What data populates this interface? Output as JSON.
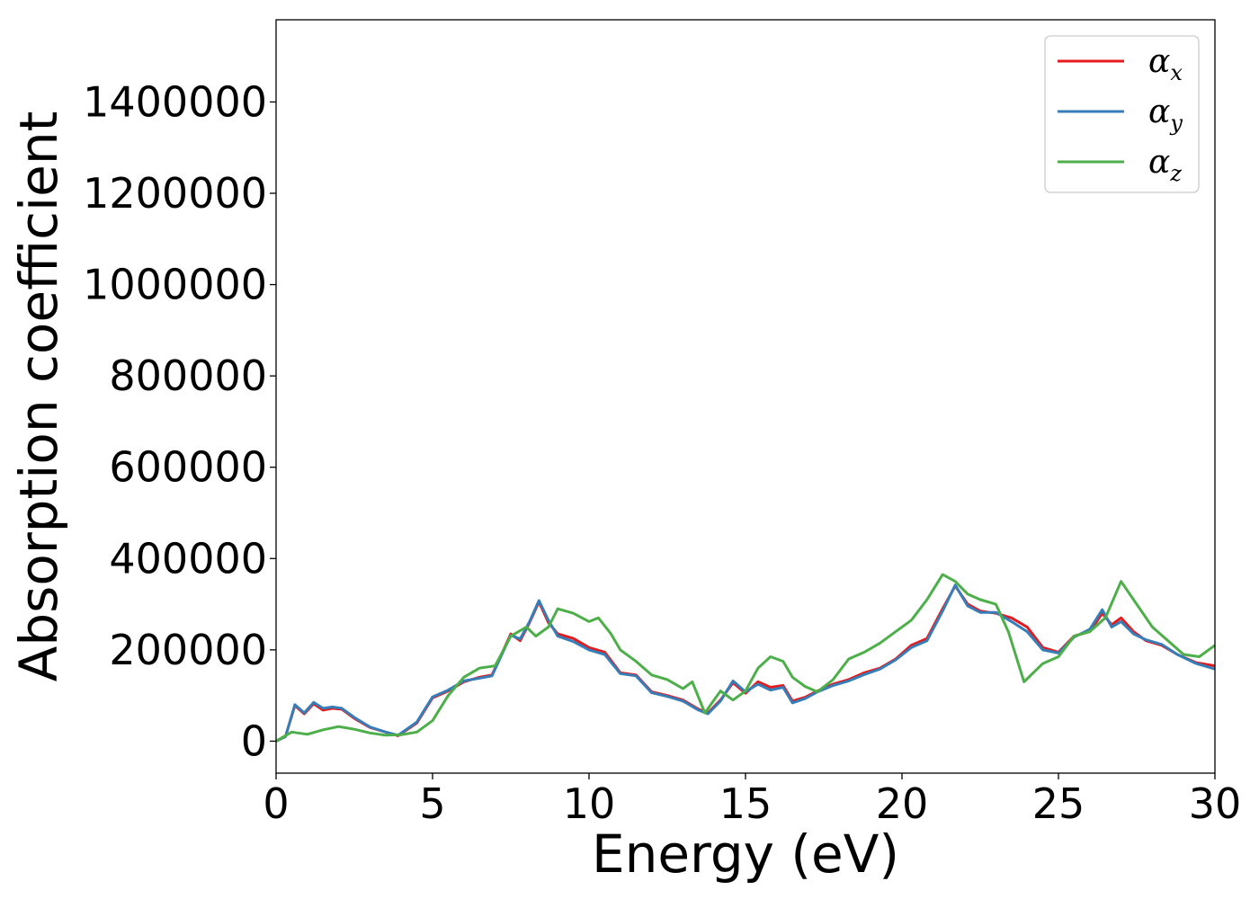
{
  "chart_data": {
    "type": "line",
    "xlabel": "Energy (eV)",
    "ylabel": "Absorption coefficient",
    "xlim": [
      0,
      30
    ],
    "ylim": [
      -70000,
      1580000
    ],
    "xticks": [
      0,
      5,
      10,
      15,
      20,
      25,
      30
    ],
    "xtick_labels": [
      "0",
      "5",
      "10",
      "15",
      "20",
      "25",
      "30"
    ],
    "yticks": [
      0,
      200000,
      400000,
      600000,
      800000,
      1000000,
      1200000,
      1400000
    ],
    "ytick_labels": [
      "0",
      "200000",
      "400000",
      "600000",
      "800000",
      "1000000",
      "1200000",
      "1400000"
    ],
    "grid": false,
    "legend": "top-right",
    "series": [
      {
        "name": "α",
        "subscript": "x",
        "color": "#e41a1c",
        "x": [
          0,
          0.3,
          0.6,
          0.9,
          1.2,
          1.5,
          1.8,
          2.1,
          2.5,
          3.0,
          3.5,
          3.9,
          4.5,
          5.0,
          5.5,
          6.0,
          6.5,
          6.9,
          7.2,
          7.5,
          7.8,
          8.1,
          8.4,
          8.7,
          9.0,
          9.5,
          10.0,
          10.5,
          11.0,
          11.5,
          12.0,
          12.5,
          13.0,
          13.5,
          13.8,
          14.2,
          14.6,
          15.0,
          15.4,
          15.8,
          16.2,
          16.5,
          16.9,
          17.3,
          17.8,
          18.3,
          18.8,
          19.3,
          19.8,
          20.3,
          20.8,
          21.3,
          21.7,
          22.1,
          22.5,
          23.0,
          23.5,
          24.0,
          24.5,
          25.0,
          25.5,
          26.0,
          26.4,
          26.7,
          27.0,
          27.4,
          27.8,
          28.3,
          28.8,
          29.4,
          30.0
        ],
        "values": [
          0,
          10000,
          78000,
          60000,
          82000,
          68000,
          72000,
          70000,
          50000,
          30000,
          20000,
          12000,
          40000,
          95000,
          110000,
          130000,
          140000,
          145000,
          190000,
          235000,
          220000,
          260000,
          305000,
          260000,
          235000,
          225000,
          205000,
          195000,
          150000,
          145000,
          108000,
          100000,
          90000,
          70000,
          62000,
          90000,
          128000,
          105000,
          130000,
          118000,
          122000,
          88000,
          96000,
          110000,
          125000,
          135000,
          150000,
          160000,
          180000,
          210000,
          225000,
          290000,
          340000,
          300000,
          285000,
          280000,
          270000,
          250000,
          205000,
          195000,
          230000,
          240000,
          280000,
          255000,
          270000,
          240000,
          220000,
          210000,
          190000,
          172000,
          165000
        ]
      },
      {
        "name": "α",
        "subscript": "y",
        "color": "#377eb8",
        "x": [
          0,
          0.3,
          0.6,
          0.9,
          1.2,
          1.5,
          1.8,
          2.1,
          2.5,
          3.0,
          3.5,
          3.9,
          4.5,
          5.0,
          5.5,
          6.0,
          6.5,
          6.9,
          7.2,
          7.5,
          7.8,
          8.1,
          8.4,
          8.7,
          9.0,
          9.5,
          10.0,
          10.5,
          11.0,
          11.5,
          12.0,
          12.5,
          13.0,
          13.5,
          13.8,
          14.2,
          14.6,
          15.0,
          15.4,
          15.8,
          16.2,
          16.5,
          16.9,
          17.3,
          17.8,
          18.3,
          18.8,
          19.3,
          19.8,
          20.3,
          20.8,
          21.3,
          21.7,
          22.1,
          22.5,
          23.0,
          23.5,
          24.0,
          24.5,
          25.0,
          25.5,
          26.0,
          26.4,
          26.7,
          27.0,
          27.4,
          27.8,
          28.3,
          28.8,
          29.4,
          30.0
        ],
        "values": [
          0,
          10000,
          80000,
          62000,
          85000,
          72000,
          75000,
          72000,
          52000,
          31000,
          20000,
          13000,
          42000,
          97000,
          112000,
          132000,
          138000,
          143000,
          188000,
          232000,
          224000,
          262000,
          308000,
          265000,
          230000,
          218000,
          200000,
          190000,
          148000,
          143000,
          106000,
          98000,
          88000,
          68000,
          60000,
          88000,
          132000,
          108000,
          125000,
          112000,
          118000,
          84000,
          93000,
          108000,
          122000,
          132000,
          146000,
          158000,
          178000,
          205000,
          220000,
          285000,
          342000,
          296000,
          282000,
          282000,
          262000,
          240000,
          200000,
          193000,
          228000,
          245000,
          288000,
          250000,
          262000,
          235000,
          222000,
          212000,
          190000,
          170000,
          158000
        ]
      },
      {
        "name": "α",
        "subscript": "z",
        "color": "#4daf4a",
        "x": [
          0,
          0.5,
          1.0,
          1.5,
          2.0,
          2.5,
          3.0,
          3.5,
          4.0,
          4.5,
          5.0,
          5.5,
          6.0,
          6.5,
          7.0,
          7.5,
          8.0,
          8.3,
          8.7,
          9.0,
          9.5,
          10.0,
          10.3,
          10.7,
          11.0,
          11.5,
          12.0,
          12.5,
          13.0,
          13.3,
          13.7,
          14.2,
          14.6,
          15.0,
          15.4,
          15.8,
          16.2,
          16.5,
          16.9,
          17.3,
          17.8,
          18.3,
          18.8,
          19.3,
          19.8,
          20.3,
          20.8,
          21.3,
          21.7,
          22.1,
          22.5,
          23.0,
          23.4,
          23.9,
          24.5,
          25.0,
          25.5,
          26.0,
          26.5,
          27.0,
          27.5,
          28.0,
          28.5,
          29.0,
          29.5,
          30.0
        ],
        "values": [
          0,
          20000,
          15000,
          25000,
          32000,
          26000,
          18000,
          13000,
          14000,
          20000,
          45000,
          100000,
          140000,
          160000,
          165000,
          230000,
          250000,
          230000,
          250000,
          290000,
          280000,
          262000,
          270000,
          235000,
          200000,
          175000,
          145000,
          135000,
          115000,
          130000,
          62000,
          110000,
          90000,
          110000,
          160000,
          185000,
          175000,
          140000,
          120000,
          108000,
          135000,
          180000,
          195000,
          215000,
          240000,
          265000,
          310000,
          365000,
          350000,
          322000,
          310000,
          300000,
          240000,
          130000,
          170000,
          185000,
          230000,
          240000,
          270000,
          350000,
          300000,
          250000,
          220000,
          190000,
          185000,
          210000
        ]
      }
    ]
  }
}
